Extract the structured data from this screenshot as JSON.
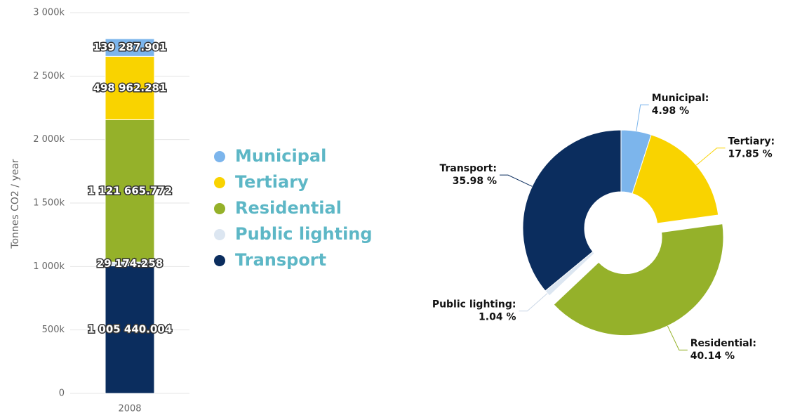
{
  "chart_data": [
    {
      "type": "stacked-bar",
      "y_label": "Tonnes CO2 / year",
      "categories": [
        "2008"
      ],
      "series": [
        {
          "name": "Municipal",
          "color": "#7cb5ec",
          "values": [
            139287.901
          ],
          "value_labels": [
            "139 287.901"
          ]
        },
        {
          "name": "Tertiary",
          "color": "#f9d300",
          "values": [
            498962.281
          ],
          "value_labels": [
            "498 962.281"
          ]
        },
        {
          "name": "Residential",
          "color": "#95b12a",
          "values": [
            1121665.772
          ],
          "value_labels": [
            "1 121 665.772"
          ]
        },
        {
          "name": "Public lighting",
          "color": "#dce6f1",
          "values": [
            29174.258
          ],
          "value_labels": [
            "29 174.258"
          ]
        },
        {
          "name": "Transport",
          "color": "#0b2d5e",
          "values": [
            1005440.004
          ],
          "value_labels": [
            "1 005 440.004"
          ]
        }
      ],
      "ylim": [
        0,
        3000000
      ],
      "yticks": [
        0,
        {
          "value": 500000,
          "label": "500k"
        },
        {
          "value": 1000000,
          "label": "1 000k"
        },
        {
          "value": 1500000,
          "label": "1 500k"
        },
        {
          "value": 2000000,
          "label": "2 000k"
        },
        {
          "value": 2500000,
          "label": "2 500k"
        },
        {
          "value": 3000000,
          "label": "3 000k"
        }
      ],
      "grid": true,
      "legend": "right"
    },
    {
      "type": "donut",
      "categories": [
        "Municipal:",
        "Tertiary:",
        "Residential:",
        "Public lighting:",
        "Transport:"
      ],
      "values": [
        4.98,
        17.85,
        40.14,
        1.04,
        35.98
      ],
      "value_labels": [
        "4.98 %",
        "17.85 %",
        "40.14 %",
        "1.04 %",
        "35.98 %"
      ],
      "colors": [
        "#7cb5ec",
        "#f9d300",
        "#95b12a",
        "#dce6f1",
        "#0b2d5e"
      ],
      "sliced": [
        false,
        false,
        true,
        false,
        false
      ]
    }
  ]
}
